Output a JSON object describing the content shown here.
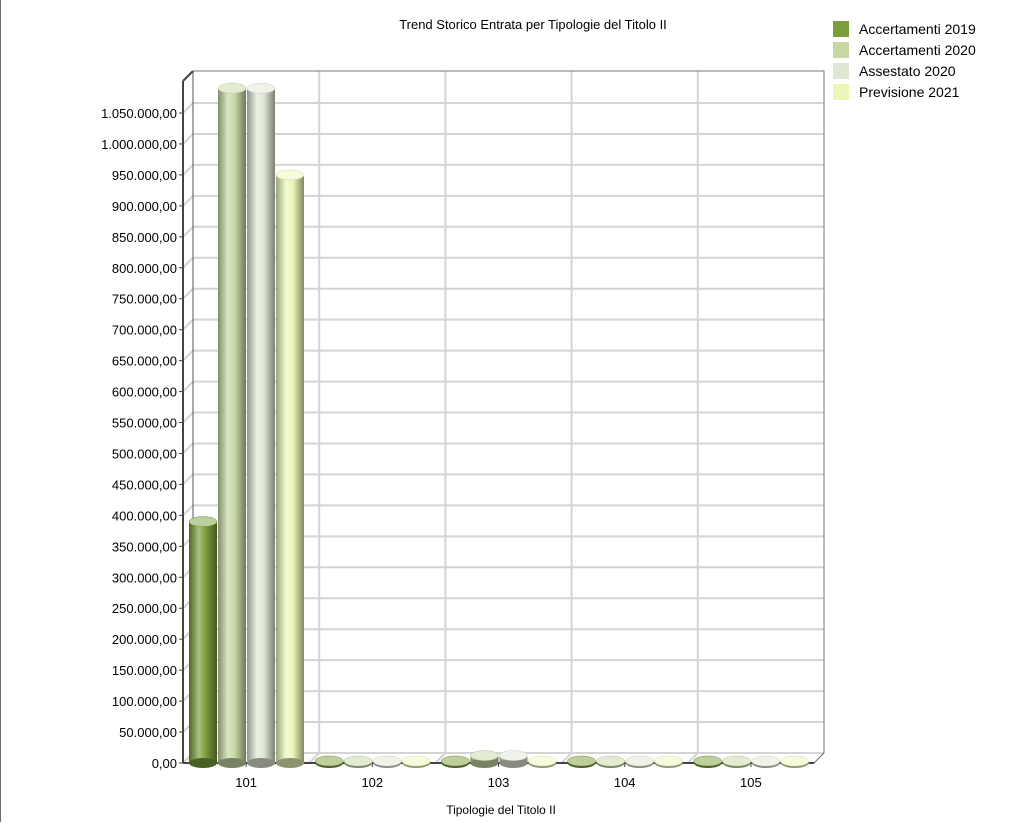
{
  "chart_data": {
    "type": "bar",
    "title": "Trend Storico Entrata per Tipologie del Titolo II",
    "xlabel": "Tipologie del Titolo II",
    "ylabel": "",
    "categories": [
      "101",
      "102",
      "103",
      "104",
      "105"
    ],
    "ylim": [
      0,
      1050000
    ],
    "ytick_labels": [
      "0,00",
      "50.000,00",
      "100.000,00",
      "150.000,00",
      "200.000,00",
      "250.000,00",
      "300.000,00",
      "350.000,00",
      "400.000,00",
      "450.000,00",
      "500.000,00",
      "550.000,00",
      "600.000,00",
      "650.000,00",
      "700.000,00",
      "750.000,00",
      "800.000,00",
      "850.000,00",
      "900.000,00",
      "950.000,00",
      "1.000.000,00",
      "1.050.000,00"
    ],
    "grid": true,
    "legend_position": "top-right",
    "series": [
      {
        "name": "Accertamenti 2019",
        "color": "#7a9e3a",
        "values": [
          390000,
          0,
          0,
          0,
          0
        ]
      },
      {
        "name": "Accertamenti 2020",
        "color": "#c6d9a4",
        "values": [
          1090000,
          0,
          12000,
          0,
          0
        ]
      },
      {
        "name": "Assestato 2020",
        "color": "#e0e6d4",
        "values": [
          1090000,
          0,
          12000,
          0,
          0
        ]
      },
      {
        "name": "Previsione 2021",
        "color": "#eaf7b8",
        "values": [
          950000,
          0,
          0,
          0,
          0
        ]
      }
    ]
  }
}
